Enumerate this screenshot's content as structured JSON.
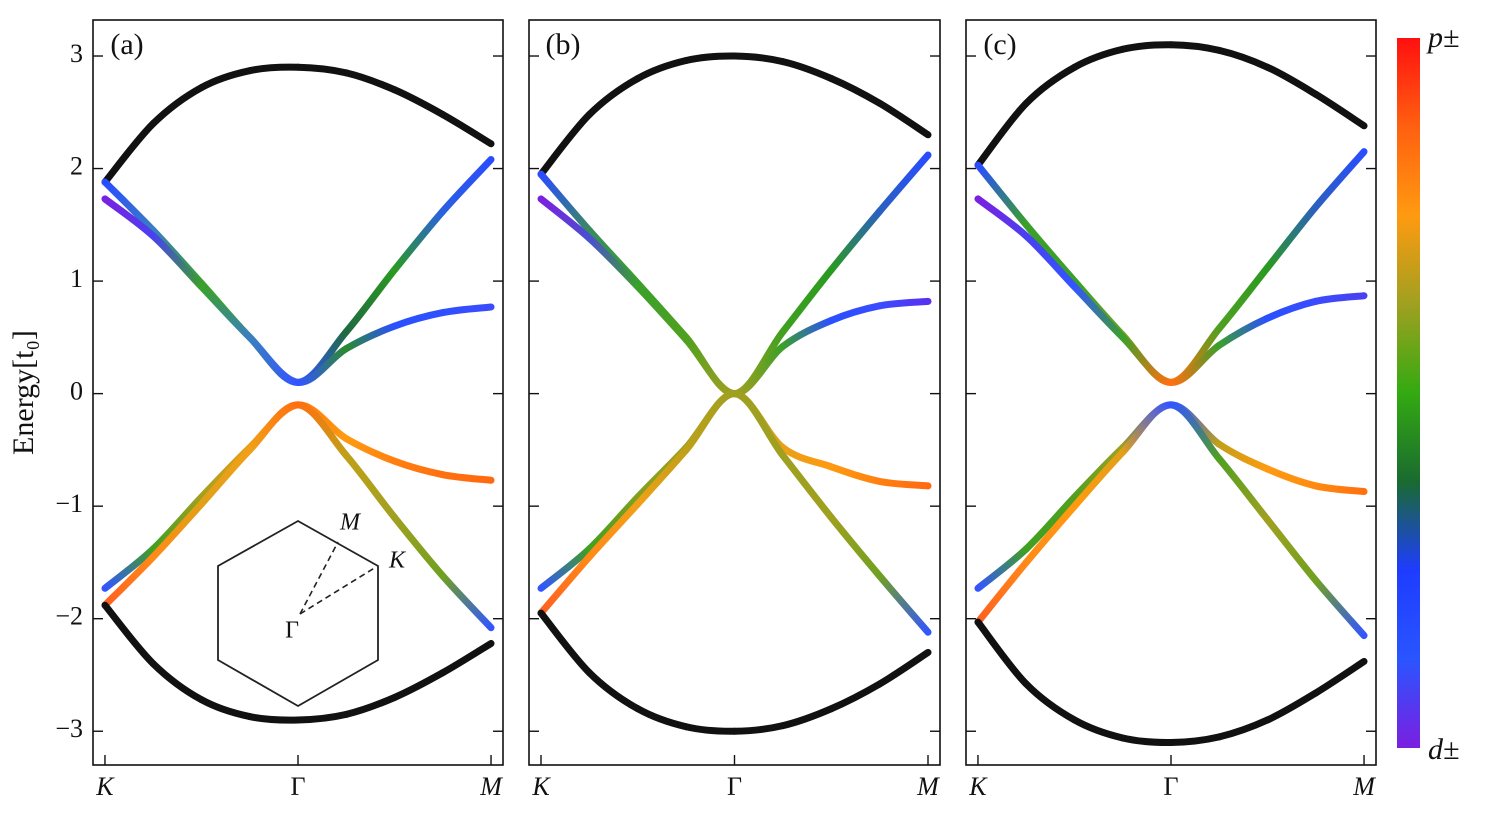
{
  "chart_data": [
    {
      "type": "line",
      "panel_label": "(a)",
      "ylabel": "Energy[t₀]",
      "show_ytick_labels": true,
      "x": [
        0,
        0.25,
        0.5,
        0.75,
        1,
        1.25,
        1.5,
        1.75,
        2
      ],
      "xlim": [
        -0.062,
        2.062
      ],
      "ylim": [
        -3.3,
        3.32
      ],
      "xticks": [
        {
          "value": 0,
          "label": "K"
        },
        {
          "value": 1,
          "label": "Γ"
        },
        {
          "value": 2,
          "label": "M"
        }
      ],
      "yticks": [
        {
          "value": -3,
          "label": "−3"
        },
        {
          "value": -2,
          "label": "−2"
        },
        {
          "value": -1,
          "label": "−1"
        },
        0,
        1,
        2,
        3
      ],
      "inset_labels": [
        "Γ",
        "M",
        "K"
      ],
      "series": [
        {
          "values": [
            1.88,
            2.4,
            2.72,
            2.87,
            2.9,
            2.85,
            2.7,
            2.48,
            2.22
          ],
          "colors": [
            "#111111",
            "#111111",
            "#111111",
            "#111111",
            "#111111",
            "#111111",
            "#111111",
            "#111111",
            "#111111"
          ]
        },
        {
          "values": [
            1.88,
            1.45,
            0.98,
            0.5,
            0.1,
            0.55,
            1.1,
            1.62,
            2.08
          ],
          "colors": [
            "#2a4cff",
            "#3a7fc0",
            "#3aa02a",
            "#3aa02a",
            "#3355ff",
            "#1f6a40",
            "#2a9a20",
            "#2a60e0",
            "#2a4cff"
          ]
        },
        {
          "values": [
            1.73,
            1.4,
            0.95,
            0.5,
            0.1,
            0.4,
            0.6,
            0.72,
            0.77
          ],
          "colors": [
            "#7a20e0",
            "#4a40f0",
            "#3aa02a",
            "#3a80c0",
            "#3355ff",
            "#2a8a30",
            "#2a50ff",
            "#3050ff",
            "#3a4cff"
          ]
        },
        {
          "values": [
            -1.73,
            -1.38,
            -0.92,
            -0.48,
            -0.1,
            -0.4,
            -0.6,
            -0.72,
            -0.77
          ],
          "colors": [
            "#3355ff",
            "#40a020",
            "#a0a020",
            "#e8a018",
            "#ff7a10",
            "#ff9a10",
            "#ff8010",
            "#ff7010",
            "#ff6a10"
          ]
        },
        {
          "values": [
            -1.88,
            -1.45,
            -0.98,
            -0.5,
            -0.1,
            -0.55,
            -1.1,
            -1.62,
            -2.08
          ],
          "colors": [
            "#ff6020",
            "#ff8a18",
            "#e0a018",
            "#f0a018",
            "#ff7010",
            "#c0a018",
            "#a0a020",
            "#70a020",
            "#3355ff"
          ]
        },
        {
          "values": [
            -1.88,
            -2.4,
            -2.72,
            -2.87,
            -2.9,
            -2.85,
            -2.7,
            -2.48,
            -2.22
          ],
          "colors": [
            "#111111",
            "#111111",
            "#111111",
            "#111111",
            "#111111",
            "#111111",
            "#111111",
            "#111111",
            "#111111"
          ]
        }
      ]
    },
    {
      "type": "line",
      "panel_label": "(b)",
      "show_ytick_labels": false,
      "x": [
        0,
        0.25,
        0.5,
        0.75,
        1,
        1.25,
        1.5,
        1.75,
        2
      ],
      "xlim": [
        -0.062,
        2.062
      ],
      "ylim": [
        -3.3,
        3.32
      ],
      "xticks": [
        {
          "value": 0,
          "label": "K"
        },
        {
          "value": 1,
          "label": "Γ"
        },
        {
          "value": 2,
          "label": "M"
        }
      ],
      "yticks": [
        -3,
        -2,
        -1,
        0,
        1,
        2,
        3
      ],
      "series": [
        {
          "values": [
            1.95,
            2.48,
            2.8,
            2.96,
            3.0,
            2.95,
            2.8,
            2.58,
            2.3
          ],
          "colors": [
            "#111111",
            "#111111",
            "#111111",
            "#111111",
            "#111111",
            "#111111",
            "#111111",
            "#111111",
            "#111111"
          ]
        },
        {
          "values": [
            1.95,
            1.45,
            0.98,
            0.5,
            0,
            0.55,
            1.1,
            1.62,
            2.12
          ],
          "colors": [
            "#2a4cff",
            "#3a8a60",
            "#3aa02a",
            "#50a020",
            "#a0a020",
            "#40a020",
            "#2a9a20",
            "#2a60c0",
            "#2a4cff"
          ]
        },
        {
          "values": [
            1.73,
            1.38,
            0.95,
            0.48,
            0,
            0.42,
            0.65,
            0.78,
            0.82
          ],
          "colors": [
            "#7a20e0",
            "#4a50d0",
            "#3aa02a",
            "#50a020",
            "#a0a020",
            "#3aa02a",
            "#2a50ff",
            "#3a4cff",
            "#5a30f0"
          ]
        },
        {
          "values": [
            -1.73,
            -1.38,
            -0.92,
            -0.48,
            0,
            -0.48,
            -0.65,
            -0.78,
            -0.82
          ],
          "colors": [
            "#3355ff",
            "#40a020",
            "#80a020",
            "#a0a020",
            "#a0a020",
            "#e8a018",
            "#ff9a10",
            "#ff8010",
            "#ff6a10"
          ]
        },
        {
          "values": [
            -1.95,
            -1.45,
            -0.98,
            -0.5,
            0,
            -0.55,
            -1.1,
            -1.62,
            -2.12
          ],
          "colors": [
            "#ff6020",
            "#ff8a18",
            "#f0a018",
            "#c0a018",
            "#a0a020",
            "#a0a020",
            "#a0a020",
            "#70a020",
            "#3355ff"
          ]
        },
        {
          "values": [
            -1.95,
            -2.48,
            -2.8,
            -2.96,
            -3.0,
            -2.95,
            -2.8,
            -2.58,
            -2.3
          ],
          "colors": [
            "#111111",
            "#111111",
            "#111111",
            "#111111",
            "#111111",
            "#111111",
            "#111111",
            "#111111",
            "#111111"
          ]
        }
      ]
    },
    {
      "type": "line",
      "panel_label": "(c)",
      "show_ytick_labels": false,
      "x": [
        0,
        0.25,
        0.5,
        0.75,
        1,
        1.25,
        1.5,
        1.75,
        2
      ],
      "xlim": [
        -0.062,
        2.062
      ],
      "ylim": [
        -3.3,
        3.32
      ],
      "xticks": [
        {
          "value": 0,
          "label": "K"
        },
        {
          "value": 1,
          "label": "Γ"
        },
        {
          "value": 2,
          "label": "M"
        }
      ],
      "yticks": [
        -3,
        -2,
        -1,
        0,
        1,
        2,
        3
      ],
      "series": [
        {
          "values": [
            2.03,
            2.58,
            2.9,
            3.06,
            3.1,
            3.05,
            2.9,
            2.66,
            2.38
          ],
          "colors": [
            "#111111",
            "#111111",
            "#111111",
            "#111111",
            "#111111",
            "#111111",
            "#111111",
            "#111111",
            "#111111"
          ]
        },
        {
          "values": [
            2.03,
            1.5,
            1.0,
            0.52,
            0.1,
            0.58,
            1.12,
            1.66,
            2.15
          ],
          "colors": [
            "#2a4cff",
            "#3aa02a",
            "#3aa02a",
            "#70a020",
            "#ff7010",
            "#50a020",
            "#2a9a20",
            "#2a60c0",
            "#2a4cff"
          ]
        },
        {
          "values": [
            1.73,
            1.4,
            0.95,
            0.5,
            0.1,
            0.43,
            0.67,
            0.82,
            0.87
          ],
          "colors": [
            "#7a20e0",
            "#4a40f0",
            "#3355ff",
            "#3aa02a",
            "#ff7010",
            "#3aa02a",
            "#2a50ff",
            "#3a4cff",
            "#4a40f0"
          ]
        },
        {
          "values": [
            -1.73,
            -1.38,
            -0.92,
            -0.48,
            -0.1,
            -0.45,
            -0.67,
            -0.82,
            -0.87
          ],
          "colors": [
            "#3355ff",
            "#40a020",
            "#50a020",
            "#a0a020",
            "#3355ff",
            "#c0a018",
            "#ff9a10",
            "#ff8a10",
            "#ff7010"
          ]
        },
        {
          "values": [
            -2.03,
            -1.5,
            -1.0,
            -0.52,
            -0.1,
            -0.58,
            -1.12,
            -1.66,
            -2.15
          ],
          "colors": [
            "#ff6020",
            "#ff8a18",
            "#ff9a10",
            "#e0a018",
            "#3355ff",
            "#50a020",
            "#a0a020",
            "#70a020",
            "#3355ff"
          ]
        },
        {
          "values": [
            -2.03,
            -2.58,
            -2.9,
            -3.06,
            -3.1,
            -3.05,
            -2.9,
            -2.66,
            -2.38
          ],
          "colors": [
            "#111111",
            "#111111",
            "#111111",
            "#111111",
            "#111111",
            "#111111",
            "#111111",
            "#111111",
            "#111111"
          ]
        }
      ]
    }
  ],
  "colorbar": {
    "colors": [
      "#ff1010",
      "#ff6010",
      "#ff9a10",
      "#a0a020",
      "#33aa11",
      "#1a6a30",
      "#1e3cff",
      "#2a55ff",
      "#7b1fe0"
    ],
    "labels": [
      "p±",
      "d±"
    ]
  }
}
